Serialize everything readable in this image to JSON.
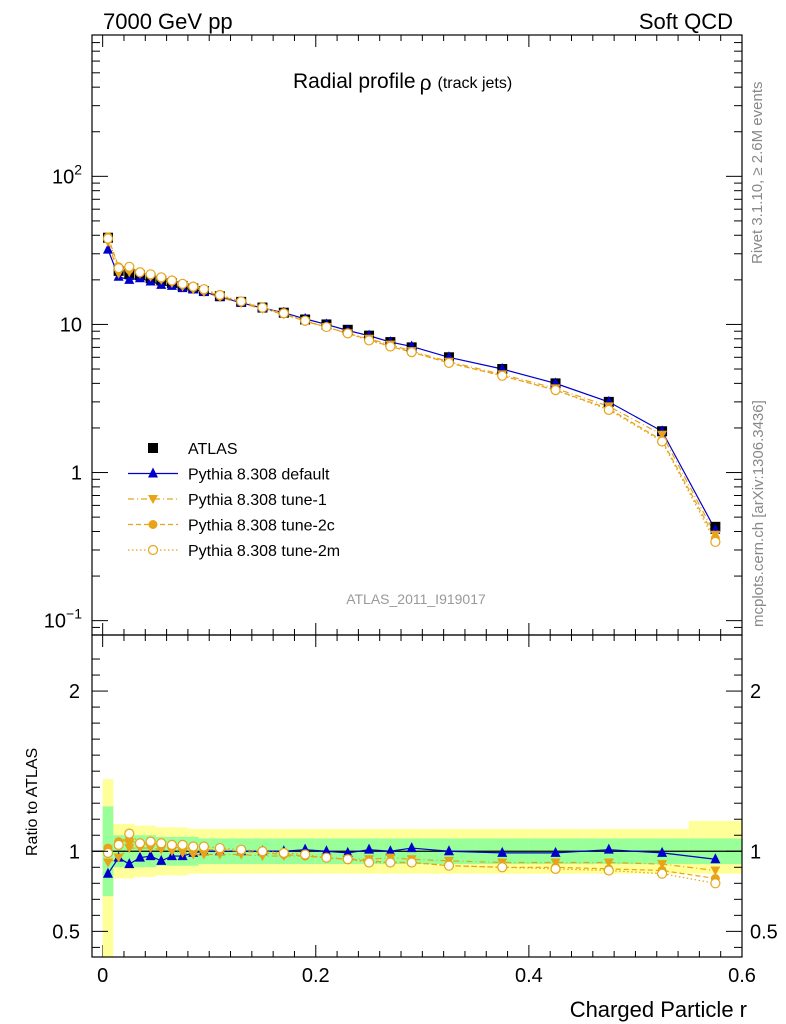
{
  "header": {
    "left": "7000 GeV pp",
    "right": "Soft QCD"
  },
  "title": {
    "main": "Radial profile",
    "symbol": "ρ",
    "sub": "(track jets)"
  },
  "side_labels": {
    "rivet": "Rivet 3.1.10, ≥ 2.6M events",
    "mcplots": "mcplots.cern.ch [arXiv:1306.3436]"
  },
  "analysis_id": "ATLAS_2011_I919017",
  "colors": {
    "data": "#000000",
    "default": "#0000cc",
    "tunes": "#e8a317",
    "band_inner": "#99ff99",
    "band_outer": "#ffff99",
    "axis": "#000000"
  },
  "legend": {
    "items": [
      {
        "label": "ATLAS",
        "marker": "square",
        "line": "none"
      },
      {
        "label": "Pythia 8.308 default",
        "marker": "triangle-up",
        "line": "solid"
      },
      {
        "label": "Pythia 8.308 tune-1",
        "marker": "triangle-down",
        "line": "dashdot"
      },
      {
        "label": "Pythia 8.308 tune-2c",
        "marker": "circle-filled",
        "line": "dashed"
      },
      {
        "label": "Pythia 8.308 tune-2m",
        "marker": "circle-open",
        "line": "dotted"
      }
    ]
  },
  "chart_data": [
    {
      "type": "line",
      "yscale": "log",
      "xlim": [
        -0.01,
        0.6
      ],
      "ylim": [
        0.08,
        900
      ],
      "yticks": [
        {
          "value": 0.1,
          "base": "10",
          "exp": "−1"
        },
        {
          "value": 1,
          "base": "1",
          "exp": ""
        },
        {
          "value": 10,
          "base": "10",
          "exp": ""
        },
        {
          "value": 100,
          "base": "10",
          "exp": "2"
        }
      ],
      "x": [
        0.005,
        0.015,
        0.025,
        0.035,
        0.045,
        0.055,
        0.065,
        0.075,
        0.085,
        0.095,
        0.11,
        0.13,
        0.15,
        0.17,
        0.19,
        0.21,
        0.23,
        0.25,
        0.27,
        0.29,
        0.325,
        0.375,
        0.425,
        0.475,
        0.525,
        0.575
      ],
      "series": [
        {
          "name": "ATLAS",
          "values": [
            38.5,
            23.0,
            22.0,
            21.5,
            20.5,
            19.8,
            19.0,
            18.2,
            17.5,
            16.8,
            15.5,
            14.2,
            13.0,
            12.0,
            10.8,
            10.0,
            9.2,
            8.4,
            7.6,
            7.0,
            6.0,
            5.0,
            4.0,
            3.0,
            1.9,
            0.43
          ]
        },
        {
          "name": "Pythia 8.308 default",
          "values": [
            32.0,
            21.0,
            20.0,
            20.5,
            19.5,
            18.5,
            18.2,
            17.6,
            17.2,
            16.6,
            15.4,
            14.0,
            12.9,
            12.0,
            10.9,
            10.0,
            9.1,
            8.4,
            7.6,
            7.1,
            6.0,
            5.0,
            4.0,
            3.0,
            1.9,
            0.41
          ]
        },
        {
          "name": "Pythia 8.308 tune-1",
          "values": [
            36.0,
            22.0,
            22.5,
            22.0,
            21.0,
            20.0,
            19.0,
            18.0,
            17.2,
            16.5,
            15.2,
            13.9,
            12.7,
            11.7,
            10.5,
            9.6,
            8.7,
            8.0,
            7.3,
            6.6,
            5.6,
            4.6,
            3.7,
            2.8,
            1.8,
            0.38
          ]
        },
        {
          "name": "Pythia 8.308 tune-2c",
          "values": [
            39.0,
            24.5,
            23.5,
            22.5,
            21.5,
            20.5,
            19.6,
            18.6,
            17.8,
            17.0,
            15.6,
            14.2,
            12.9,
            11.8,
            10.5,
            9.6,
            8.7,
            7.9,
            7.1,
            6.5,
            5.5,
            4.5,
            3.6,
            2.7,
            1.65,
            0.36
          ]
        },
        {
          "name": "Pythia 8.308 tune-2m",
          "values": [
            38.0,
            24.0,
            24.5,
            22.5,
            21.8,
            20.8,
            19.8,
            18.8,
            18.0,
            17.3,
            15.8,
            14.3,
            13.0,
            11.9,
            10.6,
            9.6,
            8.7,
            7.8,
            7.1,
            6.5,
            5.5,
            4.5,
            3.6,
            2.65,
            1.62,
            0.34
          ]
        }
      ]
    },
    {
      "type": "line",
      "ylabel": "Ratio to ATLAS",
      "xlabel": "Charged Particle r",
      "xlim": [
        -0.01,
        0.6
      ],
      "ylim": [
        0.34,
        2.35
      ],
      "xticks": [
        0,
        0.2,
        0.4,
        0.6
      ],
      "xticklabels": [
        "0",
        "0.2",
        "0.4",
        "0.6"
      ],
      "yticks": [
        0.5,
        1,
        2
      ],
      "yticklabels": [
        "0.5",
        "1",
        "2"
      ],
      "x": [
        0.005,
        0.015,
        0.025,
        0.035,
        0.045,
        0.055,
        0.065,
        0.075,
        0.085,
        0.095,
        0.11,
        0.13,
        0.15,
        0.17,
        0.19,
        0.21,
        0.23,
        0.25,
        0.27,
        0.29,
        0.325,
        0.375,
        0.425,
        0.475,
        0.525,
        0.575
      ],
      "bin_edges": [
        0.0,
        0.01,
        0.02,
        0.03,
        0.04,
        0.05,
        0.06,
        0.07,
        0.08,
        0.09,
        0.1,
        0.12,
        0.14,
        0.16,
        0.18,
        0.2,
        0.22,
        0.24,
        0.26,
        0.28,
        0.3,
        0.35,
        0.4,
        0.45,
        0.5,
        0.55,
        0.6
      ],
      "band_inner": [
        [
          0.72,
          1.28
        ],
        [
          0.9,
          1.1
        ],
        [
          0.9,
          1.1
        ],
        [
          0.9,
          1.1
        ],
        [
          0.9,
          1.1
        ],
        [
          0.91,
          1.09
        ],
        [
          0.91,
          1.09
        ],
        [
          0.91,
          1.09
        ],
        [
          0.91,
          1.09
        ],
        [
          0.92,
          1.08
        ],
        [
          0.92,
          1.08
        ],
        [
          0.92,
          1.08
        ],
        [
          0.92,
          1.08
        ],
        [
          0.92,
          1.08
        ],
        [
          0.92,
          1.08
        ],
        [
          0.92,
          1.08
        ],
        [
          0.92,
          1.08
        ],
        [
          0.92,
          1.08
        ],
        [
          0.92,
          1.08
        ],
        [
          0.92,
          1.08
        ],
        [
          0.92,
          1.08
        ],
        [
          0.92,
          1.08
        ],
        [
          0.92,
          1.08
        ],
        [
          0.92,
          1.08
        ],
        [
          0.92,
          1.08
        ],
        [
          0.92,
          1.08
        ]
      ],
      "band_outer": [
        [
          0.34,
          1.45
        ],
        [
          0.83,
          1.17
        ],
        [
          0.83,
          1.17
        ],
        [
          0.84,
          1.16
        ],
        [
          0.84,
          1.16
        ],
        [
          0.85,
          1.15
        ],
        [
          0.85,
          1.15
        ],
        [
          0.85,
          1.15
        ],
        [
          0.86,
          1.14
        ],
        [
          0.86,
          1.14
        ],
        [
          0.86,
          1.14
        ],
        [
          0.86,
          1.14
        ],
        [
          0.86,
          1.14
        ],
        [
          0.86,
          1.14
        ],
        [
          0.86,
          1.14
        ],
        [
          0.86,
          1.14
        ],
        [
          0.86,
          1.14
        ],
        [
          0.86,
          1.14
        ],
        [
          0.86,
          1.14
        ],
        [
          0.86,
          1.14
        ],
        [
          0.86,
          1.14
        ],
        [
          0.86,
          1.14
        ],
        [
          0.86,
          1.14
        ],
        [
          0.86,
          1.14
        ],
        [
          0.86,
          1.14
        ],
        [
          0.86,
          1.19
        ]
      ],
      "series": [
        {
          "name": "Pythia 8.308 default",
          "values": [
            0.86,
            0.96,
            0.92,
            0.96,
            0.97,
            0.94,
            0.97,
            0.97,
            0.99,
            1.0,
            1.0,
            1.0,
            1.0,
            1.0,
            1.01,
            1.0,
            0.99,
            1.01,
            1.0,
            1.02,
            1.0,
            0.99,
            0.99,
            1.01,
            0.99,
            0.95
          ]
        },
        {
          "name": "Pythia 8.308 tune-1",
          "values": [
            0.93,
            0.96,
            1.02,
            1.02,
            1.02,
            1.01,
            1.0,
            0.99,
            0.98,
            0.98,
            0.98,
            0.98,
            0.97,
            0.97,
            0.97,
            0.96,
            0.95,
            0.95,
            0.96,
            0.95,
            0.94,
            0.93,
            0.93,
            0.93,
            0.92,
            0.88
          ]
        },
        {
          "name": "Pythia 8.308 tune-2c",
          "values": [
            1.02,
            1.06,
            1.07,
            1.04,
            1.05,
            1.04,
            1.03,
            1.02,
            1.02,
            1.01,
            1.01,
            1.0,
            0.99,
            0.98,
            0.97,
            0.96,
            0.95,
            0.94,
            0.93,
            0.93,
            0.91,
            0.9,
            0.9,
            0.89,
            0.88,
            0.83
          ]
        },
        {
          "name": "Pythia 8.308 tune-2m",
          "values": [
            0.99,
            1.04,
            1.11,
            1.05,
            1.06,
            1.05,
            1.04,
            1.04,
            1.03,
            1.03,
            1.02,
            1.01,
            1.0,
            0.99,
            0.98,
            0.96,
            0.95,
            0.93,
            0.93,
            0.93,
            0.91,
            0.9,
            0.89,
            0.88,
            0.86,
            0.8
          ]
        }
      ]
    }
  ]
}
